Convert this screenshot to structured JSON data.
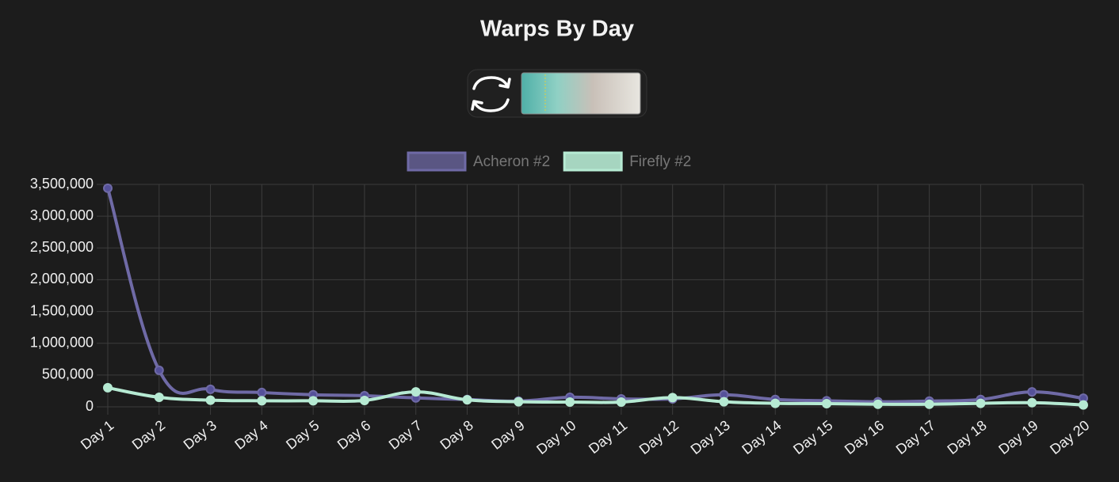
{
  "chart_data": {
    "type": "line",
    "title": "Warps By Day",
    "categories": [
      "Day 1",
      "Day 2",
      "Day 3",
      "Day 4",
      "Day 5",
      "Day 6",
      "Day 7",
      "Day 8",
      "Day 9",
      "Day 10",
      "Day 11",
      "Day 12",
      "Day 13",
      "Day 14",
      "Day 15",
      "Day 16",
      "Day 17",
      "Day 18",
      "Day 19",
      "Day 20"
    ],
    "series": [
      {
        "name": "Acheron #2",
        "color": "#6f6aa6",
        "values": [
          3440000,
          575000,
          275000,
          225000,
          190000,
          175000,
          140000,
          115000,
          90000,
          150000,
          125000,
          125000,
          190000,
          115000,
          95000,
          80000,
          90000,
          115000,
          235000,
          135000
        ]
      },
      {
        "name": "Firefly #2",
        "color": "#b6ead3",
        "values": [
          300000,
          150000,
          105000,
          95000,
          95000,
          100000,
          235000,
          110000,
          80000,
          75000,
          75000,
          145000,
          80000,
          55000,
          50000,
          40000,
          40000,
          55000,
          65000,
          30000
        ]
      }
    ],
    "ylim": [
      0,
      3500000
    ],
    "yticks": [
      {
        "value": 0,
        "label": "0"
      },
      {
        "value": 500000,
        "label": "500,000"
      },
      {
        "value": 1000000,
        "label": "1,000,000"
      },
      {
        "value": 1500000,
        "label": "1,500,000"
      },
      {
        "value": 2000000,
        "label": "2,000,000"
      },
      {
        "value": 2500000,
        "label": "2,500,000"
      },
      {
        "value": 3000000,
        "label": "3,000,000"
      },
      {
        "value": 3500000,
        "label": "3,500,000"
      }
    ],
    "grid": true
  }
}
